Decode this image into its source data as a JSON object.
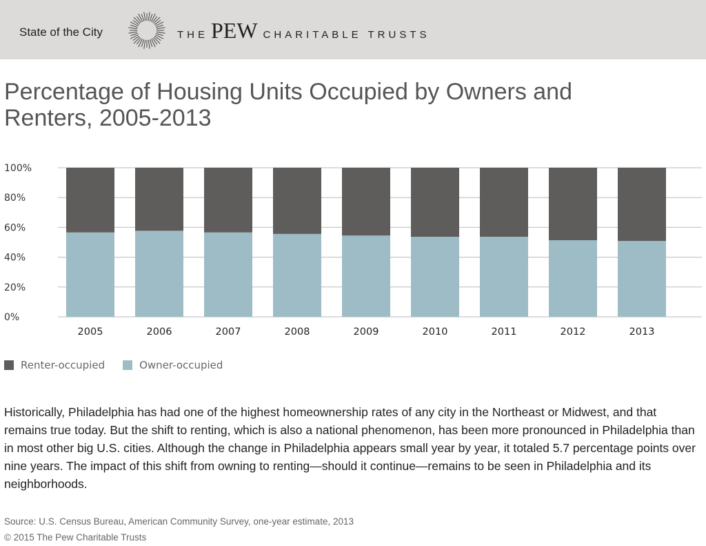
{
  "header": {
    "section_label": "State of the City",
    "logo_the": "THE",
    "logo_pew": "PEW",
    "logo_rest": "CHARITABLE TRUSTS"
  },
  "title": "Percentage of Housing Units Occupied by Owners and Renters, 2005-2013",
  "colors": {
    "renter": "#5e5d5b",
    "owner": "#9ebcc6",
    "header_bg": "#dcdbd9"
  },
  "chart_data": {
    "type": "bar",
    "stacked": true,
    "title": "Percentage of Housing Units Occupied by Owners and Renters, 2005-2013",
    "categories": [
      "2005",
      "2006",
      "2007",
      "2008",
      "2009",
      "2010",
      "2011",
      "2012",
      "2013"
    ],
    "series": [
      {
        "name": "Owner-occupied",
        "values": [
          56.6,
          57.7,
          56.6,
          55.6,
          54.5,
          53.7,
          53.7,
          51.4,
          50.9
        ]
      },
      {
        "name": "Renter-occupied",
        "values": [
          43.4,
          42.3,
          43.4,
          44.4,
          45.5,
          46.3,
          46.3,
          48.6,
          49.1
        ]
      }
    ],
    "yticks": [
      "0%",
      "20%",
      "40%",
      "60%",
      "80%",
      "100%"
    ],
    "ylim": [
      0,
      100
    ],
    "xlabel": "",
    "ylabel": "",
    "grid": true,
    "legend": {
      "placement": "bottom-left",
      "entries": [
        "Renter-occupied",
        "Owner-occupied"
      ]
    }
  },
  "body": "Historically, Philadelphia has had one of the highest homeownership rates of any city in the Northeast or Midwest, and that remains true today. But the shift to renting, which is also a national phenomenon, has been more pronounced in Philadelphia than in most other big U.S. cities. Although the change in Philadelphia appears small year by year, it totaled 5.7 percentage points over nine years. The impact of this shift from owning to renting—should it continue—remains to be seen in Philadelphia and its neighborhoods.",
  "source": "Source: U.S. Census Bureau, American Community Survey, one-year estimate, 2013",
  "copyright": "© 2015 The Pew Charitable Trusts"
}
